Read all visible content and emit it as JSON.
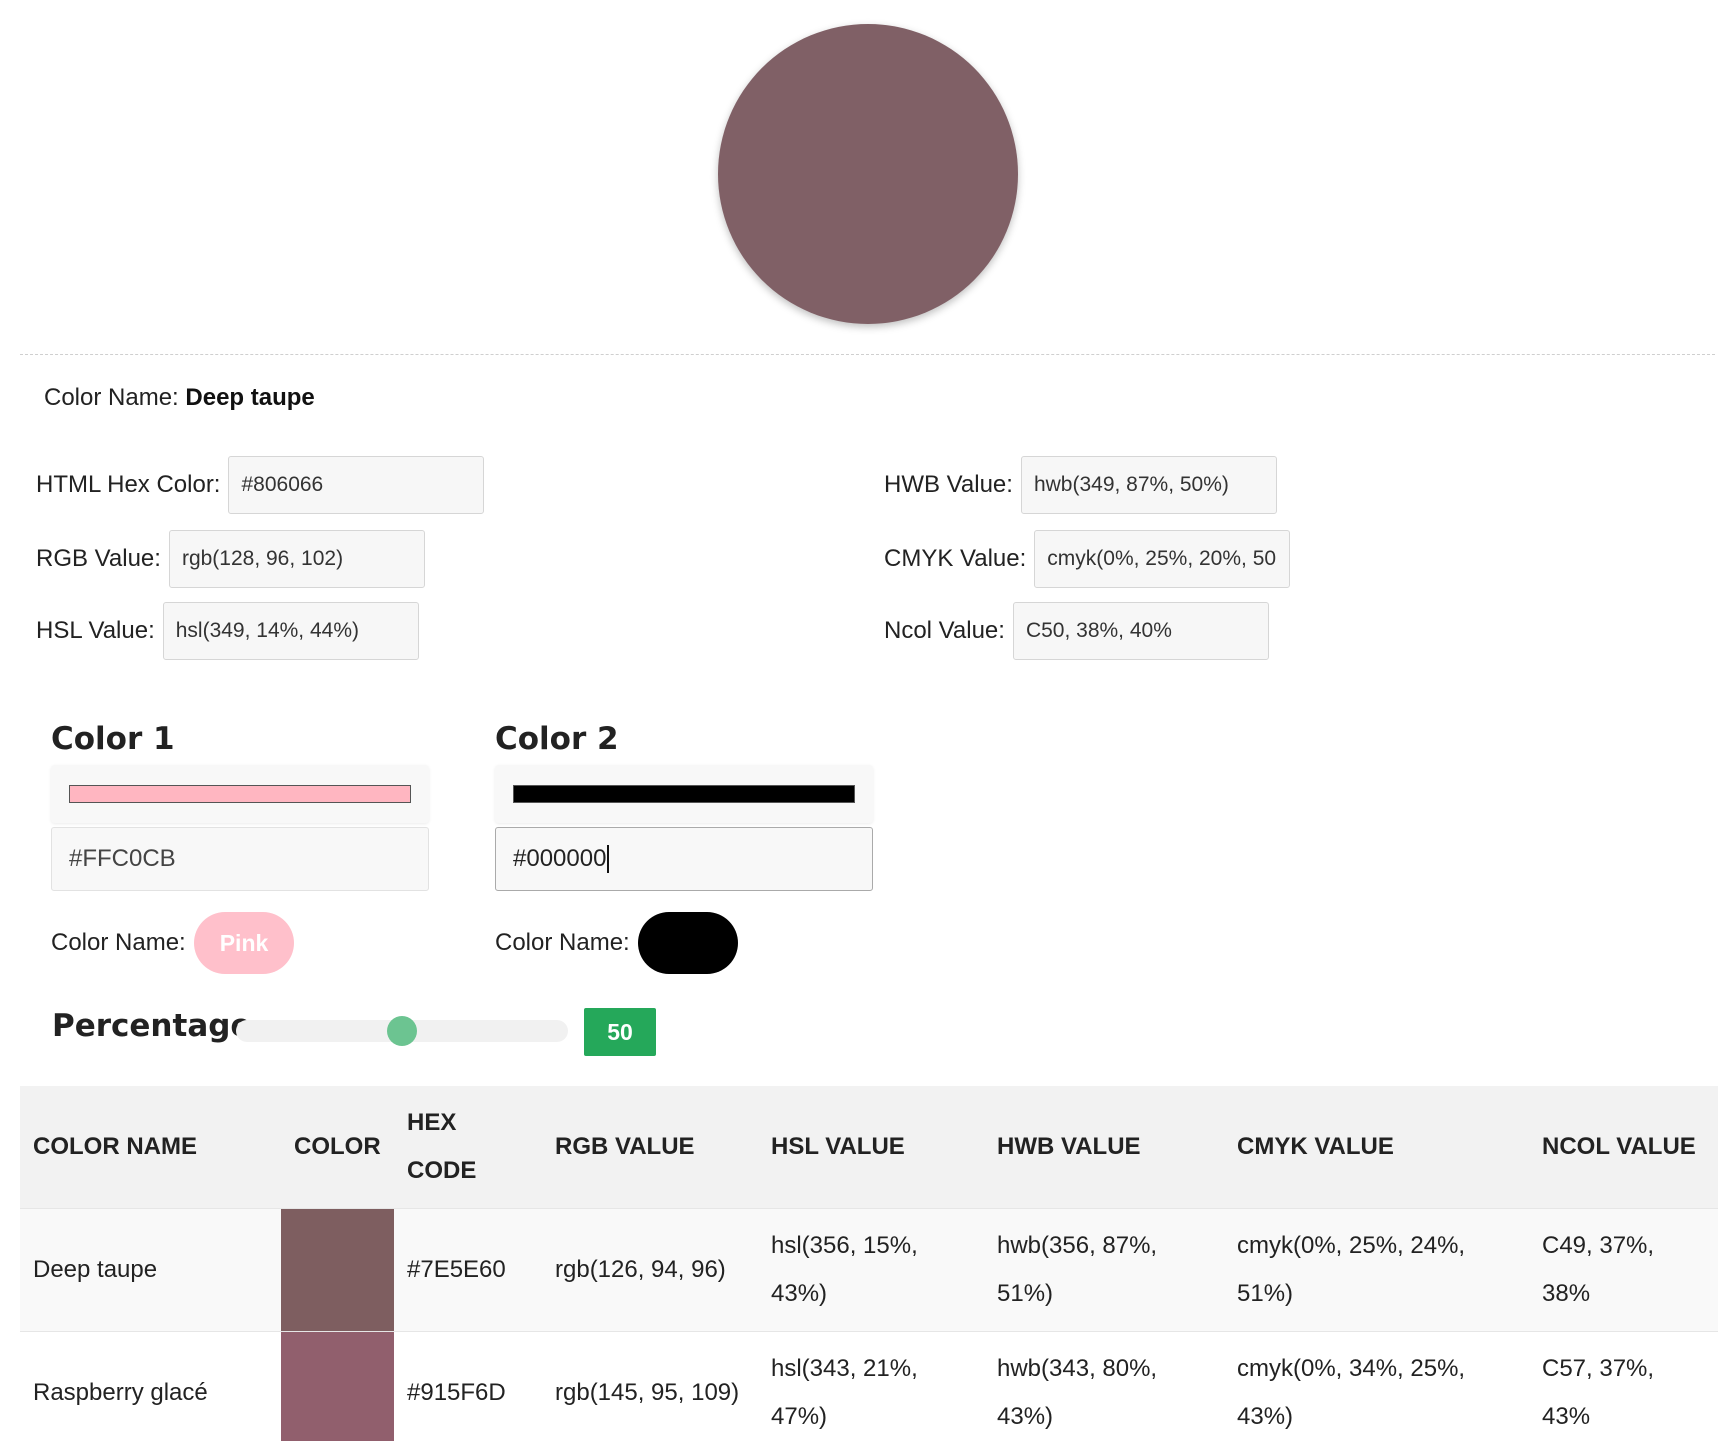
{
  "main_color": {
    "hex": "#806066"
  },
  "color_name": {
    "label": "Color Name:",
    "value": "Deep taupe"
  },
  "values": {
    "hex": {
      "label": "HTML Hex Color:",
      "value": "#806066"
    },
    "rgb": {
      "label": "RGB Value:",
      "value": "rgb(128, 96, 102)"
    },
    "hsl": {
      "label": "HSL Value:",
      "value": "hsl(349, 14%, 44%)"
    },
    "hwb": {
      "label": "HWB Value:",
      "value": "hwb(349, 87%, 50%)"
    },
    "cmyk": {
      "label": "CMYK Value:",
      "value": "cmyk(0%, 25%, 20%, 50"
    },
    "ncol": {
      "label": "Ncol Value:",
      "value": "C50, 38%, 40%"
    }
  },
  "mixer": {
    "color1": {
      "title": "Color 1",
      "hex": "#FFC0CB",
      "swatch": "#FFB6C1",
      "name_label": "Color Name:",
      "name": "Pink",
      "pill_color": "#FFC0CB"
    },
    "color2": {
      "title": "Color 2",
      "hex": "#000000",
      "swatch": "#000000",
      "name_label": "Color Name:",
      "name": "",
      "pill_color": "#000000"
    }
  },
  "percentage": {
    "label": "Percentage",
    "value": "50",
    "fraction": 0.5
  },
  "table": {
    "headers": [
      "COLOR NAME",
      "COLOR",
      "HEX CODE",
      "RGB VALUE",
      "HSL VALUE",
      "HWB VALUE",
      "CMYK VALUE",
      "NCOL VALUE"
    ],
    "rows": [
      {
        "name": "Deep taupe",
        "color": "#7E5E60",
        "hex": "#7E5E60",
        "rgb": "rgb(126, 94, 96)",
        "hsl": "hsl(356, 15%, 43%)",
        "hwb": "hwb(356, 87%, 51%)",
        "cmyk": "cmyk(0%, 25%, 24%, 51%)",
        "ncol": "C49, 37%, 38%"
      },
      {
        "name": "Raspberry glacé",
        "color": "#915F6D",
        "hex": "#915F6D",
        "rgb": "rgb(145, 95, 109)",
        "hsl": "hsl(343, 21%, 47%)",
        "hwb": "hwb(343, 80%, 43%)",
        "cmyk": "cmyk(0%, 34%, 25%, 43%)",
        "ncol": "C57, 37%, 43%"
      }
    ]
  }
}
